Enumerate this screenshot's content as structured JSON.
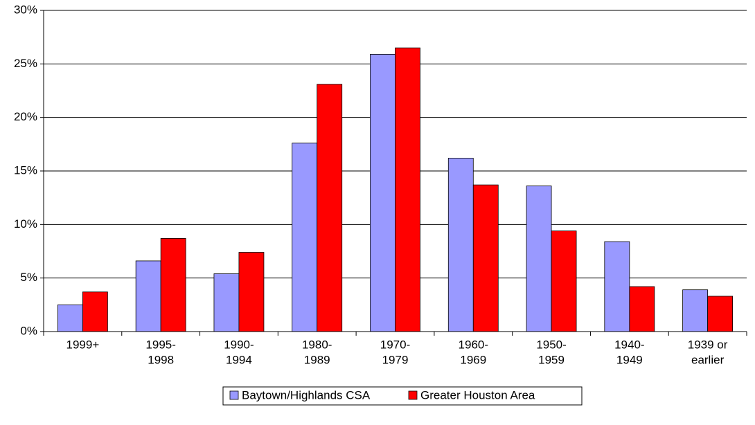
{
  "chart_data": {
    "type": "bar",
    "categories": [
      [
        "1999+"
      ],
      [
        "1995-",
        "1998"
      ],
      [
        "1990-",
        "1994"
      ],
      [
        "1980-",
        "1989"
      ],
      [
        "1970-",
        "1979"
      ],
      [
        "1960-",
        "1969"
      ],
      [
        "1950-",
        "1959"
      ],
      [
        "1940-",
        "1949"
      ],
      [
        "1939 or",
        "earlier"
      ]
    ],
    "series": [
      {
        "name": "Baytown/Highlands CSA",
        "color": "#9999ff",
        "values": [
          2.5,
          6.6,
          5.4,
          17.6,
          25.9,
          16.2,
          13.6,
          8.4,
          3.9
        ]
      },
      {
        "name": "Greater Houston Area",
        "color": "#ff0000",
        "values": [
          3.7,
          8.7,
          7.4,
          23.1,
          26.5,
          13.7,
          9.4,
          4.2,
          3.3
        ]
      }
    ],
    "ylim": [
      0,
      30
    ],
    "yticks": [
      {
        "value": 0,
        "label": "0%"
      },
      {
        "value": 5,
        "label": "5%"
      },
      {
        "value": 10,
        "label": "10%"
      },
      {
        "value": 15,
        "label": "15%"
      },
      {
        "value": 20,
        "label": "20%"
      },
      {
        "value": 25,
        "label": "25%"
      },
      {
        "value": 30,
        "label": "30%"
      }
    ],
    "grid": true,
    "legend": "bottom"
  }
}
